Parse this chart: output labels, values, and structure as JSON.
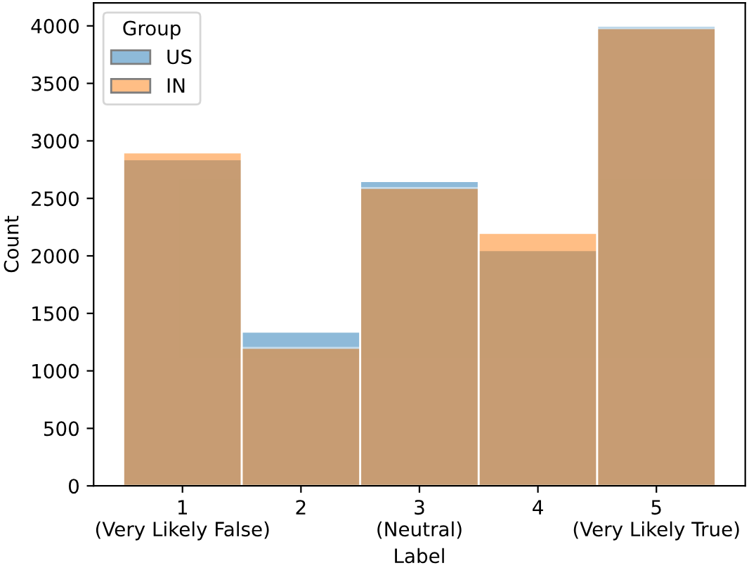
{
  "chart_data": {
    "type": "histogram",
    "xlabel": "Label",
    "ylabel": "Count",
    "legend_title": "Group",
    "legend": "top left",
    "grid": false,
    "bins": [
      0.5,
      1.5,
      2.5,
      3.5,
      4.5,
      5.5
    ],
    "series": [
      {
        "name": "US",
        "color": "#1f77b4",
        "values": [
          2840,
          1340,
          2650,
          2050,
          4000
        ]
      },
      {
        "name": "IN",
        "color": "#ff7f0e",
        "values": [
          2900,
          1200,
          2590,
          2200,
          3980
        ]
      }
    ],
    "xlim": [
      0.25,
      5.75
    ],
    "xticks": [
      {
        "value": 1,
        "label": "1\n(Very Likely False)"
      },
      2,
      {
        "value": 3,
        "label": "3\n(Neutral)"
      },
      4,
      {
        "value": 5,
        "label": "5\n(Very Likely True)"
      }
    ],
    "ylim": [
      0,
      4200
    ],
    "yticks": [
      0,
      500,
      1000,
      1500,
      2000,
      2500,
      3000,
      3500,
      4000
    ]
  }
}
